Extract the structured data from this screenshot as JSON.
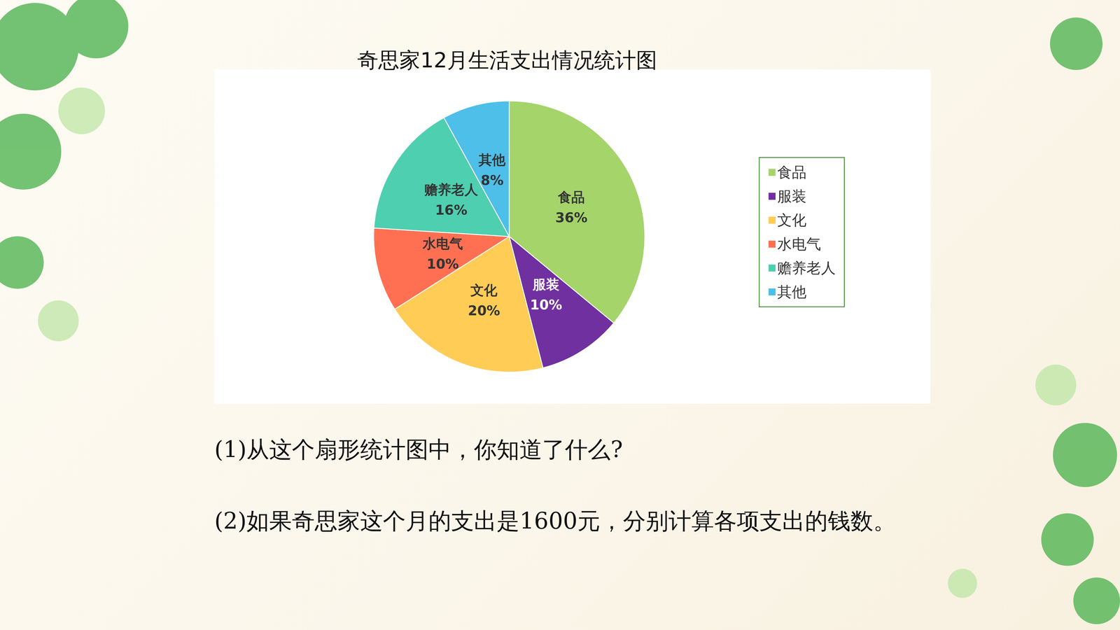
{
  "chart_data": {
    "type": "pie",
    "title": "奇思家12月生活支出情况统计图",
    "categories": [
      "食品",
      "服装",
      "文化",
      "水电气",
      "赡养老人",
      "其他"
    ],
    "values": [
      36,
      10,
      20,
      10,
      16,
      8
    ],
    "value_labels": [
      "36%",
      "10%",
      "20%",
      "10%",
      "16%",
      "8%"
    ],
    "colors": [
      "#a5d46a",
      "#7030a0",
      "#ffcc55",
      "#ff7052",
      "#4ecfb0",
      "#4dbfe8"
    ],
    "data_labels": true,
    "legend": "right",
    "annotations": [
      "(1)从这个扇形统计图中，你知道了什么?",
      "(2)如果奇思家这个月的支出是1600元，分别计算各项支出的钱数。"
    ]
  }
}
